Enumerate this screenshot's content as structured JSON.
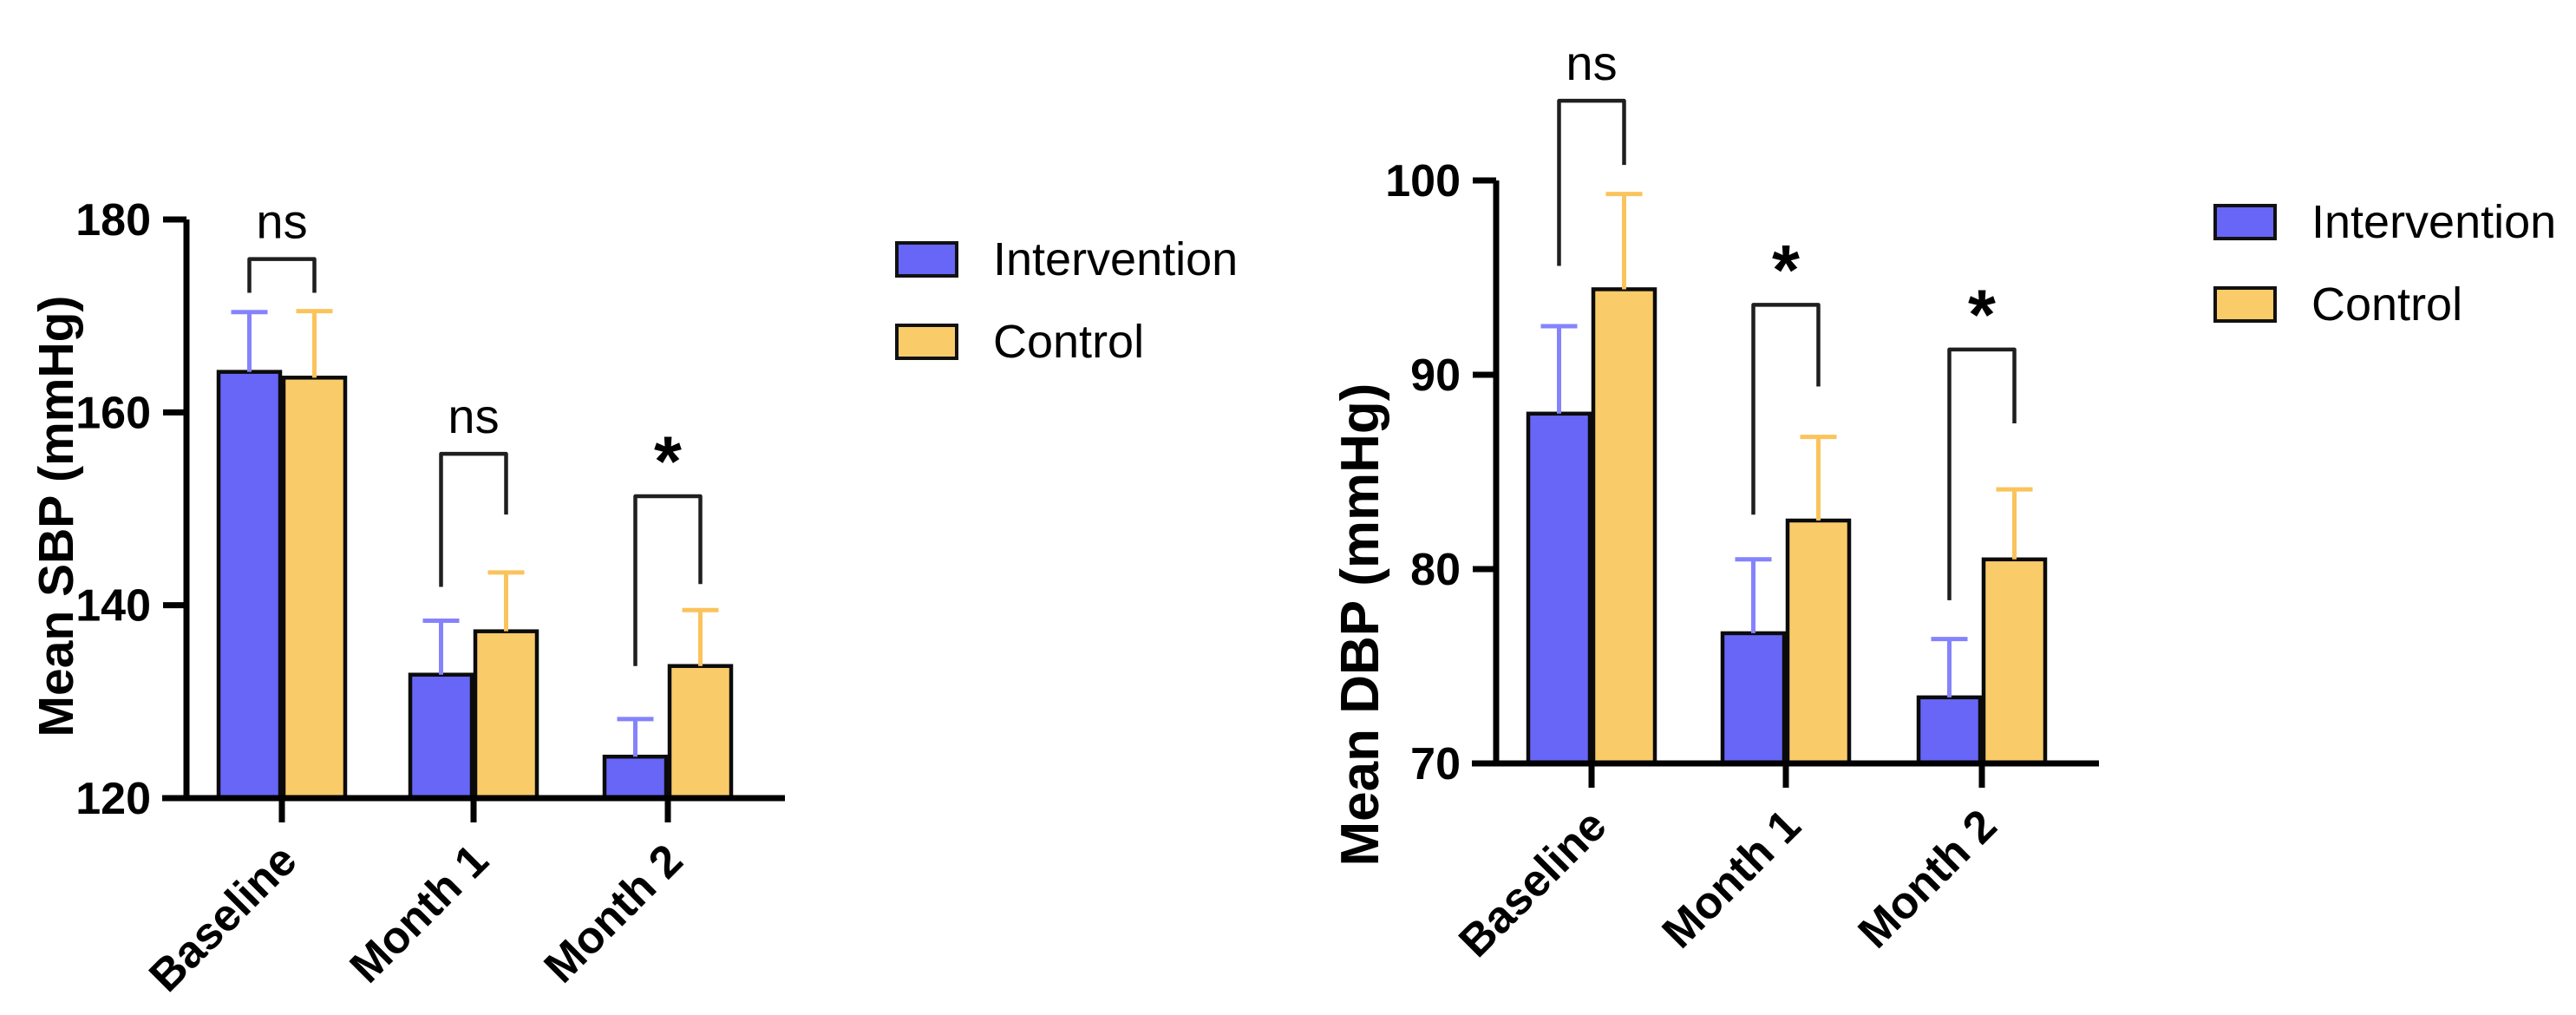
{
  "colors": {
    "background": "#ffffff",
    "axis": "#000000",
    "bracket": "#1f1f1f",
    "text": "#000000",
    "series": [
      {
        "name": "Intervention",
        "fill": "#6766F7",
        "error": "#8583FC"
      },
      {
        "name": "Control",
        "fill": "#FACB69",
        "error": "#FBC35C"
      }
    ]
  },
  "legend": {
    "items": [
      {
        "label": "Intervention"
      },
      {
        "label": "Control"
      }
    ]
  },
  "chart_data": [
    {
      "type": "bar",
      "title": "",
      "ylabel": "Mean SBP (mmHg)",
      "xlabel": "",
      "ylim": [
        120,
        180
      ],
      "yticks": [
        120,
        140,
        160,
        180
      ],
      "categories": [
        "Baseline",
        "Month 1",
        "Month 2"
      ],
      "series": [
        {
          "name": "Intervention",
          "values": [
            164.2,
            132.8,
            124.3
          ],
          "errors": [
            6.2,
            5.6,
            3.9
          ]
        },
        {
          "name": "Control",
          "values": [
            163.6,
            137.3,
            133.7
          ],
          "errors": [
            6.9,
            6.1,
            5.8
          ]
        }
      ],
      "significance": [
        {
          "category": "Baseline",
          "label": "ns",
          "bracket_top": 175.9,
          "left_arm_bottom": 172.4,
          "right_arm_bottom": 172.4
        },
        {
          "category": "Month 1",
          "label": "ns",
          "bracket_top": 155.7,
          "left_arm_bottom": 141.9,
          "right_arm_bottom": 149.4
        },
        {
          "category": "Month 2",
          "label": "*",
          "bracket_top": 151.3,
          "left_arm_bottom": 133.7,
          "right_arm_bottom": 142.2
        }
      ],
      "legend_position": "right",
      "grid": false
    },
    {
      "type": "bar",
      "title": "",
      "ylabel": "Mean DBP (mmHg)",
      "xlabel": "",
      "ylim": [
        70,
        100
      ],
      "yticks": [
        70,
        80,
        90,
        100
      ],
      "categories": [
        "Baseline",
        "Month 1",
        "Month 2"
      ],
      "series": [
        {
          "name": "Intervention",
          "values": [
            88.0,
            76.7,
            73.4
          ],
          "errors": [
            4.5,
            3.8,
            3.0
          ]
        },
        {
          "name": "Control",
          "values": [
            94.4,
            82.5,
            80.5
          ],
          "errors": [
            4.9,
            4.3,
            3.6
          ]
        }
      ],
      "significance": [
        {
          "category": "Baseline",
          "label": "ns",
          "bracket_top": 104.1,
          "left_arm_bottom": 95.6,
          "right_arm_bottom": 100.8
        },
        {
          "category": "Month 1",
          "label": "*",
          "bracket_top": 93.6,
          "left_arm_bottom": 82.8,
          "right_arm_bottom": 89.4
        },
        {
          "category": "Month 2",
          "label": "*",
          "bracket_top": 91.3,
          "left_arm_bottom": 78.4,
          "right_arm_bottom": 87.5
        }
      ],
      "legend_position": "right",
      "grid": false
    }
  ]
}
